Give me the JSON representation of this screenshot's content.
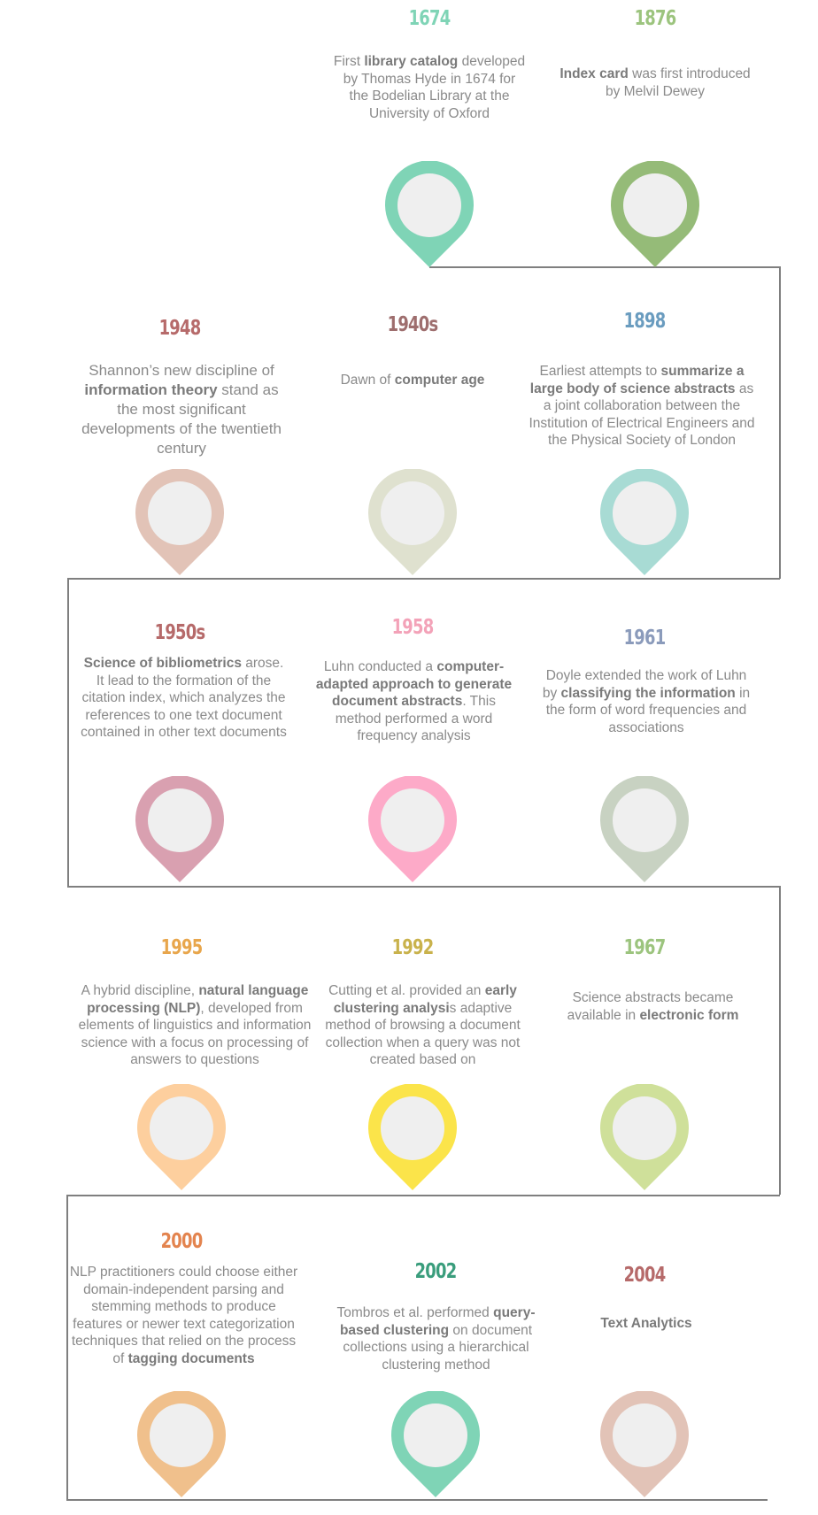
{
  "colors": {
    "line": "#7f7f7f",
    "pin_inner": "#efefef"
  },
  "events": [
    {
      "year": "1674",
      "color": "#7fd4b6",
      "year_color": "#7fd4b6",
      "desc": [
        [
          "First "
        ],
        [
          "library catalog",
          true
        ],
        [
          " developed by Thomas Hyde in 1674 for the Bodelian Library at the University of Oxford"
        ]
      ]
    },
    {
      "year": "1876",
      "color": "#95bb78",
      "year_color": "#9cc47e",
      "desc": [
        [
          "Index card",
          true
        ],
        [
          " was first introduced by Melvil Dewey"
        ]
      ]
    },
    {
      "year": "1948",
      "color": "#e2c3b7",
      "year_color": "#b66a6a",
      "desc": [
        [
          "Shannon’s new discipline of "
        ],
        [
          "information theory",
          true
        ],
        [
          " stand as the most significant developments of the twentieth century"
        ]
      ]
    },
    {
      "year": "1940s",
      "color": "#dfe1cf",
      "year_color": "#9e6e6e",
      "desc": [
        [
          "Dawn of "
        ],
        [
          "computer age",
          true
        ]
      ]
    },
    {
      "year": "1898",
      "color": "#a8dbd4",
      "year_color": "#6a9cbf",
      "desc": [
        [
          "Earliest attempts to "
        ],
        [
          "summarize a large body of science abstracts",
          true
        ],
        [
          " as a joint collaboration between the Institution of Electrical Engineers and the Physical Society of London"
        ]
      ]
    },
    {
      "year": "1950s",
      "color": "#d9a0b0",
      "year_color": "#b66a6a",
      "desc": [
        [
          "Science of bibliometrics",
          true
        ],
        [
          " arose. It lead to the formation of the citation index, which analyzes the references to one text document contained in other text documents"
        ]
      ]
    },
    {
      "year": "1958",
      "color": "#fdaac8",
      "year_color": "#f3a2b8",
      "desc": [
        [
          "Luhn conducted a "
        ],
        [
          "computer-adapted approach to generate document abstracts",
          true
        ],
        [
          ". This method performed a word frequency analysis"
        ]
      ]
    },
    {
      "year": "1961",
      "color": "#c8d2c2",
      "year_color": "#8b9bbb",
      "desc": [
        [
          "Doyle extended the work of Luhn by "
        ],
        [
          "classifying the information",
          true
        ],
        [
          " in the form of word frequencies and associations"
        ]
      ]
    },
    {
      "year": "1995",
      "color": "#fdcf9e",
      "year_color": "#e8a64c",
      "desc": [
        [
          "A hybrid discipline, "
        ],
        [
          "natural language processing (NLP)",
          true
        ],
        [
          ", developed from elements of linguistics and information science with a focus on processing of answers to questions"
        ]
      ]
    },
    {
      "year": "1992",
      "color": "#fbe44a",
      "year_color": "#c9b24c",
      "desc": [
        [
          "Cutting et al. provided an "
        ],
        [
          "early clustering analysi",
          true
        ],
        [
          "s adaptive method of browsing a document collection when a query was not created based on"
        ]
      ]
    },
    {
      "year": "1967",
      "color": "#cfe09a",
      "year_color": "#9cc47e",
      "desc": [
        [
          "Science abstracts became available in "
        ],
        [
          "electronic form",
          true
        ]
      ]
    },
    {
      "year": "2000",
      "color": "#f0c08c",
      "year_color": "#e3844f",
      "desc": [
        [
          "NLP practitioners could choose either domain-independent parsing and stemming methods to produce features or newer text categorization techniques that relied on the process of "
        ],
        [
          "tagging documents",
          true
        ]
      ]
    },
    {
      "year": "2002",
      "color": "#7fd4b6",
      "year_color": "#3a9d7c",
      "desc": [
        [
          "Tombros et al. performed "
        ],
        [
          "query-based clustering",
          true
        ],
        [
          " on document collections using a hierarchical clustering method"
        ]
      ]
    },
    {
      "year": "2004",
      "color": "#e2c3b7",
      "year_color": "#b66a6a",
      "desc": [
        [
          "Text Analytics",
          true
        ]
      ]
    }
  ]
}
